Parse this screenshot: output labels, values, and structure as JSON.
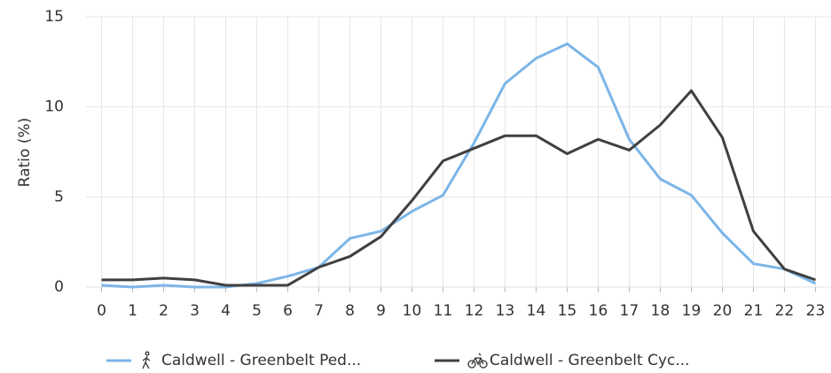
{
  "chart_data": {
    "type": "line",
    "y_label": "Ratio (%)",
    "categories": [
      "0",
      "1",
      "2",
      "3",
      "4",
      "5",
      "6",
      "7",
      "8",
      "9",
      "10",
      "11",
      "12",
      "13",
      "14",
      "15",
      "16",
      "17",
      "18",
      "19",
      "20",
      "21",
      "22",
      "23"
    ],
    "series": [
      {
        "name": "Caldwell - Greenbelt Ped...",
        "color": "#7cb5e8",
        "values": [
          0.1,
          0.0,
          0.1,
          0.0,
          0.0,
          0.2,
          0.6,
          1.1,
          2.7,
          3.1,
          4.2,
          5.1,
          8.0,
          11.3,
          12.7,
          13.5,
          12.2,
          8.2,
          6.0,
          5.1,
          3.0,
          1.3,
          1.0,
          0.2
        ]
      },
      {
        "name": "Caldwell - Greenbelt Cyc...",
        "color": "#404040",
        "values": [
          0.4,
          0.4,
          0.5,
          0.4,
          0.1,
          0.1,
          0.1,
          1.1,
          1.7,
          2.8,
          4.8,
          7.0,
          7.7,
          8.4,
          8.4,
          7.4,
          8.2,
          7.6,
          9.0,
          10.9,
          8.3,
          3.1,
          1.0,
          0.4
        ]
      }
    ],
    "ylim": [
      0,
      15
    ],
    "yticks": [
      0,
      5,
      10,
      15
    ],
    "grid": true,
    "legend": "bottom"
  }
}
